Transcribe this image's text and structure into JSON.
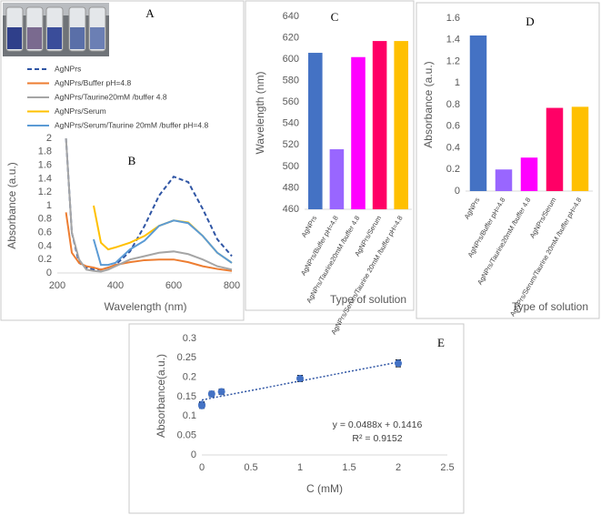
{
  "panel_a": {
    "label": "A"
  },
  "chart_data": [
    {
      "type": "line",
      "panel_label": "B",
      "x_label": "Wavelength (nm)",
      "y_label": "Absorbance (a.u.)",
      "x": [
        230,
        250,
        275,
        300,
        325,
        350,
        375,
        400,
        450,
        500,
        550,
        600,
        650,
        700,
        750,
        800
      ],
      "xlim": [
        200,
        800
      ],
      "xticks": [
        200,
        400,
        600,
        800
      ],
      "ylim": [
        0,
        2
      ],
      "yticks": [
        0,
        0.2,
        0.4,
        0.6,
        0.8,
        1,
        1.2,
        1.4,
        1.6,
        1.8,
        2
      ],
      "series": [
        {
          "name": "AgNPrs",
          "color": "#2f55a4",
          "dashed": true,
          "values": [
            2,
            0.6,
            0.15,
            0.08,
            0.05,
            0.05,
            0.08,
            0.12,
            0.32,
            0.7,
            1.15,
            1.43,
            1.35,
            0.95,
            0.5,
            0.25
          ]
        },
        {
          "name": "AgNPrs/Buffer pH=4.8",
          "color": "#ed7d31",
          "values": [
            0.9,
            0.3,
            0.15,
            0.1,
            0.08,
            0.05,
            0.08,
            0.12,
            0.16,
            0.19,
            0.2,
            0.2,
            0.16,
            0.1,
            0.06,
            0.03
          ]
        },
        {
          "name": "AgNPrs/Taurine20mM /buffer 4.8",
          "color": "#a5a5a5",
          "values": [
            2,
            0.6,
            0.2,
            0.05,
            0.03,
            0.02,
            0.05,
            0.1,
            0.2,
            0.25,
            0.3,
            0.32,
            0.28,
            0.2,
            0.1,
            0.05
          ]
        },
        {
          "name": "AgNPrs/Serum",
          "color": "#ffc000",
          "values": [
            null,
            null,
            null,
            null,
            1.0,
            0.45,
            0.35,
            0.38,
            0.45,
            0.55,
            0.7,
            0.78,
            0.75,
            0.55,
            0.3,
            0.15
          ]
        },
        {
          "name": "AgNPrs/Serum/Taurine 20mM /buffer pH=4.8",
          "color": "#5b9bd5",
          "values": [
            null,
            null,
            null,
            null,
            0.5,
            0.12,
            0.12,
            0.15,
            0.35,
            0.48,
            0.7,
            0.78,
            0.74,
            0.55,
            0.3,
            0.15
          ]
        }
      ]
    },
    {
      "type": "bar",
      "panel_label": "C",
      "x_label": "Type of solution",
      "y_label": "Wavelength (nm)",
      "categories": [
        "AgNPrs",
        "AgNPrs/Buffer pH=4.8",
        "AgNPrs/Taurine20mM /buffer 4.8",
        "AgNPrs/Serum",
        "AgNPrs/Serum/Taurine 20mM /buffer pH=4.8"
      ],
      "values": [
        606,
        516,
        602,
        617,
        617
      ],
      "colors": [
        "#4472c4",
        "#9966ff",
        "#ff00ff",
        "#ff0066",
        "#ffc000"
      ],
      "ylim": [
        460,
        640
      ],
      "yticks": [
        460,
        480,
        500,
        520,
        540,
        560,
        580,
        600,
        620,
        640
      ]
    },
    {
      "type": "bar",
      "panel_label": "D",
      "x_label": "Type of solution",
      "y_label": "Absorbance (a.u.)",
      "categories": [
        "AgNPrs",
        "AgNPrs/Buffer pH=4.8",
        "AgNPrs/Taurine20mM /buffer 4.8",
        "AgNPrs/Serum",
        "AgNPrs/Serum/Taurine 20mM /buffer pH=4.8"
      ],
      "values": [
        1.44,
        0.2,
        0.31,
        0.77,
        0.78
      ],
      "colors": [
        "#4472c4",
        "#9966ff",
        "#ff00ff",
        "#ff0066",
        "#ffc000"
      ],
      "ylim": [
        0,
        1.6
      ],
      "yticks": [
        0,
        0.2,
        0.4,
        0.6,
        0.8,
        1,
        1.2,
        1.4,
        1.6
      ]
    },
    {
      "type": "scatter",
      "panel_label": "E",
      "x_label": "C (mM)",
      "y_label": "Absorbance(a.u.)",
      "x": [
        0,
        0,
        0.1,
        0.2,
        1,
        2
      ],
      "values": [
        0.13,
        0.127,
        0.157,
        0.163,
        0.197,
        0.236
      ],
      "errors": [
        0.007,
        0.007,
        0.007,
        0.007,
        0.008,
        0.009
      ],
      "color": "#4472c4",
      "trendline": {
        "slope": 0.0488,
        "intercept": 0.1416
      },
      "equation": "y = 0.0488x + 0.1416",
      "r_squared": "R² = 0.9152",
      "xlim": [
        0,
        2.5
      ],
      "xticks": [
        0,
        0.5,
        1,
        1.5,
        2,
        2.5
      ],
      "ylim": [
        0,
        0.3
      ],
      "yticks": [
        0,
        0.05,
        0.1,
        0.15,
        0.2,
        0.25,
        0.3
      ]
    }
  ]
}
